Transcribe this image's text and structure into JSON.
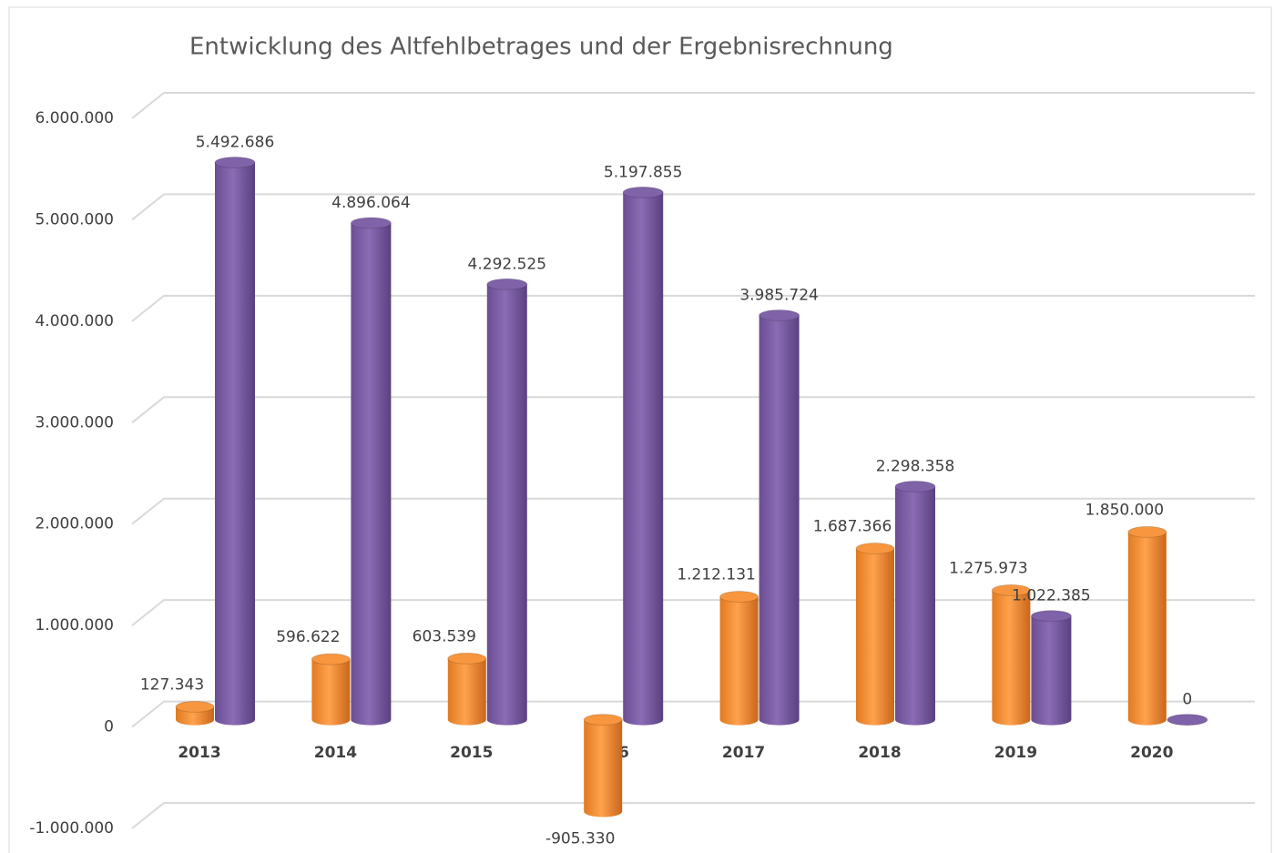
{
  "chart_data": {
    "type": "bar3d",
    "title": "Entwicklung des Altfehlbetrages und der Ergebnisrechnung",
    "categories": [
      "2013",
      "2014",
      "2015",
      "2016",
      "2017",
      "2018",
      "2019",
      "2020"
    ],
    "series": [
      {
        "color": "#f7963e",
        "values": [
          127343,
          596622,
          603539,
          -905330,
          1212131,
          1687366,
          1275973,
          1850000
        ],
        "value_labels": [
          "127.343",
          "596.622",
          "603.539",
          "-905.330",
          "1.212.131",
          "1.687.366",
          "1.275.973",
          "1.850.000"
        ]
      },
      {
        "color": "#7f62a8",
        "values": [
          5492686,
          4896064,
          4292525,
          5197855,
          3985724,
          2298358,
          1022385,
          0
        ],
        "value_labels": [
          "5.492.686",
          "4.896.064",
          "4.292.525",
          "5.197.855",
          "3.985.724",
          "2.298.358",
          "1.022.385",
          "0"
        ]
      }
    ],
    "ylim": [
      -1000000,
      6000000
    ],
    "yticks": [
      {
        "value": -1000000,
        "label": "-1.000.000"
      },
      0,
      {
        "value": 1000000,
        "label": "1.000.000"
      },
      {
        "value": 2000000,
        "label": "2.000.000"
      },
      {
        "value": 3000000,
        "label": "3.000.000"
      },
      {
        "value": 4000000,
        "label": "4.000.000"
      },
      {
        "value": 5000000,
        "label": "5.000.000"
      },
      {
        "value": 6000000,
        "label": "6.000.000"
      }
    ],
    "grid": true
  }
}
